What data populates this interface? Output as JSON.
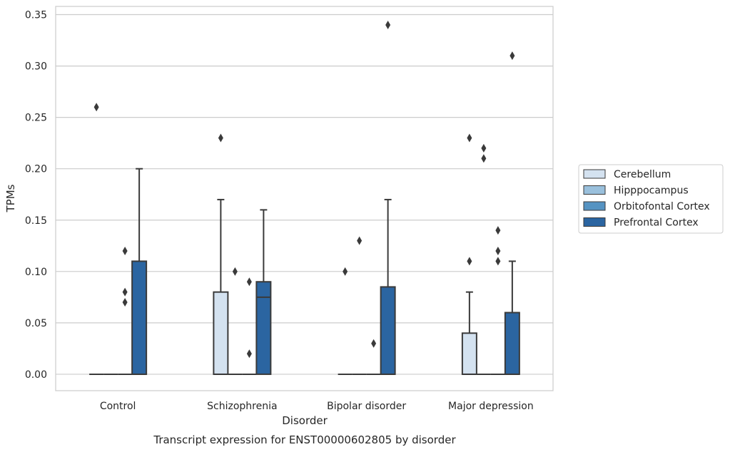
{
  "chart_data": {
    "type": "box",
    "title": "Transcript expression for ENST00000602805 by disorder",
    "xlabel": "Disorder",
    "ylabel": "TPMs",
    "ylim": [
      -0.016,
      0.358
    ],
    "yticks": [
      "0.00",
      "0.05",
      "0.10",
      "0.15",
      "0.20",
      "0.25",
      "0.30",
      "0.35"
    ],
    "grid": true,
    "legend_position": "right",
    "categories": [
      "Control",
      "Schizophrenia",
      "Bipolar disorder",
      "Major depression"
    ],
    "series": [
      {
        "name": "Cerebellum",
        "color": "#d4e2f0",
        "boxes": [
          {
            "whislo": 0.0,
            "q1": 0.0,
            "med": 0.0,
            "q3": 0.0,
            "whishi": 0.0,
            "fliers": [
              0.26
            ]
          },
          {
            "whislo": 0.0,
            "q1": 0.0,
            "med": 0.0,
            "q3": 0.08,
            "whishi": 0.17,
            "fliers": [
              0.23
            ]
          },
          {
            "whislo": 0.0,
            "q1": 0.0,
            "med": 0.0,
            "q3": 0.0,
            "whishi": 0.0,
            "fliers": [
              0.1
            ]
          },
          {
            "whislo": 0.0,
            "q1": 0.0,
            "med": 0.0,
            "q3": 0.04,
            "whishi": 0.08,
            "fliers": [
              0.11,
              0.23
            ]
          }
        ]
      },
      {
        "name": "Hipppocampus",
        "color": "#9ac0dc",
        "boxes": [
          {
            "whislo": 0.0,
            "q1": 0.0,
            "med": 0.0,
            "q3": 0.0,
            "whishi": 0.0,
            "fliers": []
          },
          {
            "whislo": 0.0,
            "q1": 0.0,
            "med": 0.0,
            "q3": 0.0,
            "whishi": 0.0,
            "fliers": [
              0.1
            ]
          },
          {
            "whislo": 0.0,
            "q1": 0.0,
            "med": 0.0,
            "q3": 0.0,
            "whishi": 0.0,
            "fliers": [
              0.13
            ]
          },
          {
            "whislo": 0.0,
            "q1": 0.0,
            "med": 0.0,
            "q3": 0.0,
            "whishi": 0.0,
            "fliers": [
              0.22,
              0.21
            ]
          }
        ]
      },
      {
        "name": "Orbitofontal Cortex",
        "color": "#5593c2",
        "boxes": [
          {
            "whislo": 0.0,
            "q1": 0.0,
            "med": 0.0,
            "q3": 0.0,
            "whishi": 0.0,
            "fliers": [
              0.12,
              0.08,
              0.07
            ]
          },
          {
            "whislo": 0.0,
            "q1": 0.0,
            "med": 0.0,
            "q3": 0.0,
            "whishi": 0.0,
            "fliers": [
              0.09,
              0.02
            ]
          },
          {
            "whislo": 0.0,
            "q1": 0.0,
            "med": 0.0,
            "q3": 0.0,
            "whishi": 0.0,
            "fliers": [
              0.03
            ]
          },
          {
            "whislo": 0.0,
            "q1": 0.0,
            "med": 0.0,
            "q3": 0.0,
            "whishi": 0.0,
            "fliers": [
              0.11,
              0.14,
              0.12
            ]
          }
        ]
      },
      {
        "name": "Prefrontal Cortex",
        "color": "#2b65a1",
        "boxes": [
          {
            "whislo": 0.0,
            "q1": 0.0,
            "med": 0.0,
            "q3": 0.11,
            "whishi": 0.2,
            "fliers": []
          },
          {
            "whislo": 0.0,
            "q1": 0.0,
            "med": 0.075,
            "q3": 0.09,
            "whishi": 0.16,
            "fliers": []
          },
          {
            "whislo": 0.0,
            "q1": 0.0,
            "med": 0.0,
            "q3": 0.085,
            "whishi": 0.17,
            "fliers": [
              0.34
            ]
          },
          {
            "whislo": 0.0,
            "q1": 0.0,
            "med": 0.0,
            "q3": 0.06,
            "whishi": 0.11,
            "fliers": [
              0.31
            ]
          }
        ]
      }
    ]
  }
}
